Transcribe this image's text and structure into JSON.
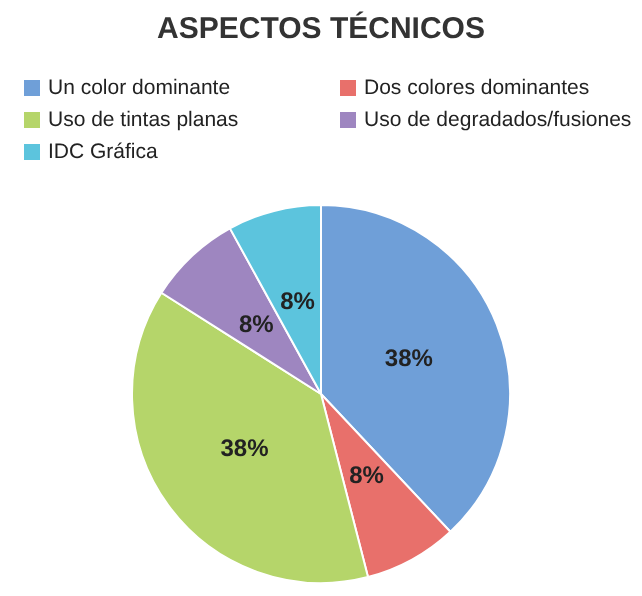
{
  "chart_data": {
    "type": "pie",
    "title": "ASPECTOS TÉCNICOS",
    "categories": [
      "Un color dominante",
      "Dos colores dominantes",
      "Uso de tintas planas",
      "Uso de degradados/fusiones",
      "IDC Gráfica"
    ],
    "values": [
      38,
      8,
      38,
      8,
      8
    ],
    "colors": [
      "#6f9fd8",
      "#e8706b",
      "#b5d56a",
      "#9e86c0",
      "#5cc4dd"
    ],
    "value_labels": [
      "38%",
      "8%",
      "38%",
      "8%",
      "8%"
    ],
    "legend": "top"
  }
}
